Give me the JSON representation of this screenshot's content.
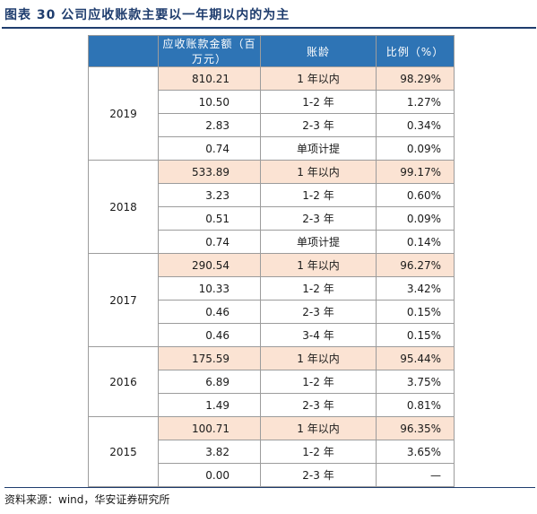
{
  "figure": {
    "title": "图表 30  公司应收账款主要以一年期以内的为主"
  },
  "table": {
    "headers": {
      "amount": "应收账款金额（百万元）",
      "age": "账龄",
      "ratio": "比例（%）"
    },
    "groups": [
      {
        "year": "2019",
        "rows": [
          {
            "amount": "810.21",
            "age": "1 年以内",
            "ratio": "98.29%",
            "highlight": true
          },
          {
            "amount": "10.50",
            "age": "1-2 年",
            "ratio": "1.27%",
            "highlight": false
          },
          {
            "amount": "2.83",
            "age": "2-3 年",
            "ratio": "0.34%",
            "highlight": false
          },
          {
            "amount": "0.74",
            "age": "单项计提",
            "ratio": "0.09%",
            "highlight": false
          }
        ]
      },
      {
        "year": "2018",
        "rows": [
          {
            "amount": "533.89",
            "age": "1 年以内",
            "ratio": "99.17%",
            "highlight": true
          },
          {
            "amount": "3.23",
            "age": "1-2 年",
            "ratio": "0.60%",
            "highlight": false
          },
          {
            "amount": "0.51",
            "age": "2-3 年",
            "ratio": "0.09%",
            "highlight": false
          },
          {
            "amount": "0.74",
            "age": "单项计提",
            "ratio": "0.14%",
            "highlight": false
          }
        ]
      },
      {
        "year": "2017",
        "rows": [
          {
            "amount": "290.54",
            "age": "1 年以内",
            "ratio": "96.27%",
            "highlight": true
          },
          {
            "amount": "10.33",
            "age": "1-2 年",
            "ratio": "3.42%",
            "highlight": false
          },
          {
            "amount": "0.46",
            "age": "2-3 年",
            "ratio": "0.15%",
            "highlight": false
          },
          {
            "amount": "0.46",
            "age": "3-4 年",
            "ratio": "0.15%",
            "highlight": false
          }
        ]
      },
      {
        "year": "2016",
        "rows": [
          {
            "amount": "175.59",
            "age": "1 年以内",
            "ratio": "95.44%",
            "highlight": true
          },
          {
            "amount": "6.89",
            "age": "1-2 年",
            "ratio": "3.75%",
            "highlight": false
          },
          {
            "amount": "1.49",
            "age": "2-3 年",
            "ratio": "0.81%",
            "highlight": false
          }
        ]
      },
      {
        "year": "2015",
        "rows": [
          {
            "amount": "100.71",
            "age": "1 年以内",
            "ratio": "96.35%",
            "highlight": true
          },
          {
            "amount": "3.82",
            "age": "1-2 年",
            "ratio": "3.65%",
            "highlight": false
          },
          {
            "amount": "0.00",
            "age": "2-3 年",
            "ratio": "—",
            "highlight": false
          }
        ]
      }
    ]
  },
  "source": "资料来源：wind，华安证券研究所",
  "colors": {
    "header_bg": "#2e74b5",
    "highlight_bg": "#fbe3d3",
    "title": "#1f3d6e"
  }
}
